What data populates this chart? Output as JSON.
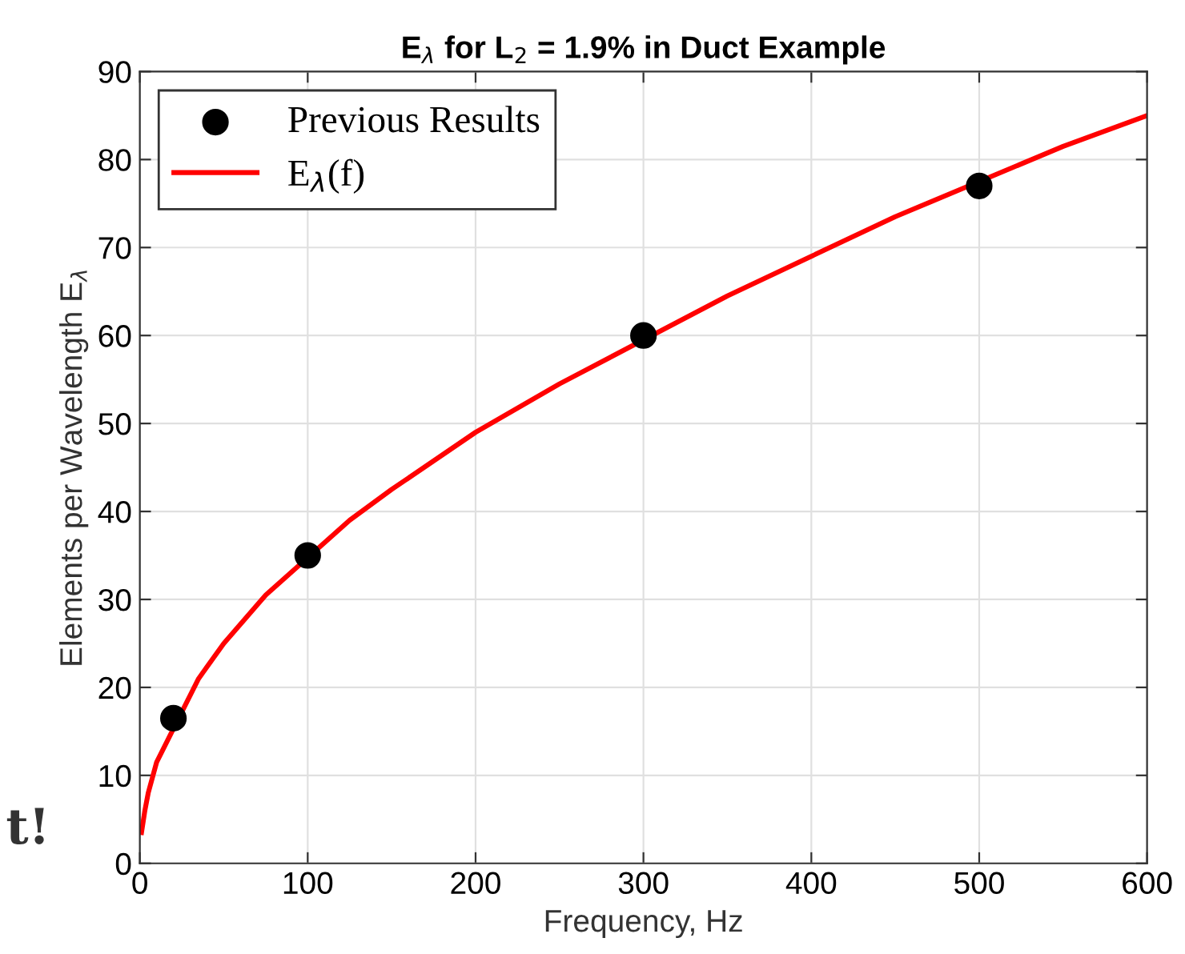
{
  "chart_data": {
    "type": "scatter",
    "title": "E$_{λ}$ for L$_{2}$ = 1.9% in Duct Example",
    "xlabel": "Frequency, Hz",
    "ylabel": "Elements per Wavelength E$_{λ}$",
    "series": [
      {
        "name": "Previous Results",
        "color": "#000000",
        "marker": "circle",
        "x": [
          20,
          100,
          300,
          500
        ],
        "values": [
          16.5,
          35,
          60,
          77
        ]
      },
      {
        "name": "E$_{λ}$(f)",
        "type": "line",
        "color": "#ff0000",
        "marker": "none",
        "line_style": "solid",
        "x": [
          1,
          3,
          5,
          10,
          35,
          50,
          75,
          125,
          150,
          200,
          250,
          350,
          400,
          450,
          550,
          600
        ],
        "values": [
          3.5,
          6,
          8,
          11.5,
          21,
          25,
          30.5,
          39,
          42.5,
          49,
          54.5,
          64.5,
          69,
          73.5,
          81.5,
          85
        ]
      }
    ],
    "xlim": [
      0,
      600
    ],
    "ylim": [
      0,
      90
    ],
    "xticks": [
      0,
      100,
      200,
      300,
      400,
      500,
      600
    ],
    "yticks": [
      0,
      10,
      20,
      30,
      40,
      50,
      60,
      70,
      80,
      90
    ],
    "grid": true,
    "legend": "top left",
    "annotations": [
      "t!"
    ]
  }
}
